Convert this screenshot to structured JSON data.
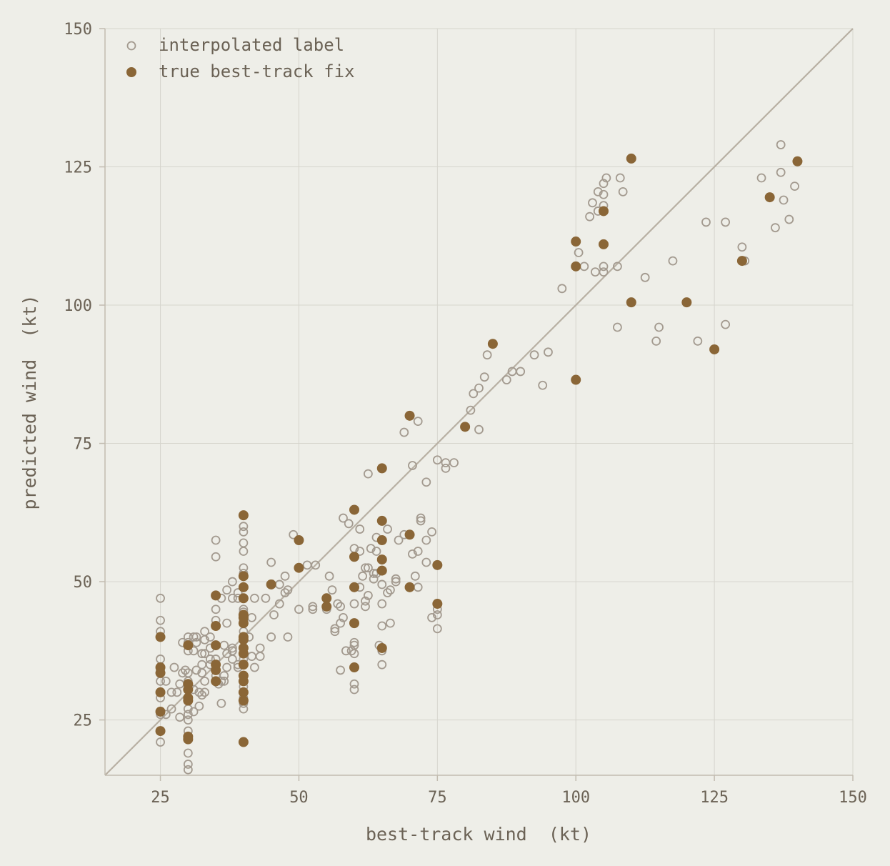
{
  "chart_data": {
    "type": "scatter",
    "xlabel": "best-track wind  (kt)",
    "ylabel": "predicted wind  (kt)",
    "xlim": [
      15,
      150
    ],
    "ylim": [
      15,
      150
    ],
    "xticks": [
      25,
      50,
      75,
      100,
      125,
      150
    ],
    "yticks": [
      25,
      50,
      75,
      100,
      125,
      150
    ],
    "grid": true,
    "legend_position": "top-left",
    "reference_line": "y = x",
    "colors": {
      "open": "#a39a8f",
      "filled": "#8a6637",
      "diagonal": "#b8b0a3"
    },
    "series": [
      {
        "name": "interpolated label",
        "marker": "open",
        "points": [
          [
            25,
            47
          ],
          [
            25,
            43
          ],
          [
            25,
            41
          ],
          [
            25,
            36
          ],
          [
            25,
            34
          ],
          [
            25,
            32
          ],
          [
            25,
            29
          ],
          [
            25,
            26
          ],
          [
            25,
            21
          ],
          [
            26,
            32
          ],
          [
            26,
            26
          ],
          [
            27,
            30
          ],
          [
            27,
            27
          ],
          [
            27.5,
            34.5
          ],
          [
            28,
            30
          ],
          [
            28.5,
            31.5
          ],
          [
            28.5,
            25.5
          ],
          [
            29,
            33.5
          ],
          [
            29,
            39
          ],
          [
            29.5,
            34
          ],
          [
            30,
            40
          ],
          [
            30,
            39
          ],
          [
            30,
            37.5
          ],
          [
            30,
            33.5
          ],
          [
            30,
            32
          ],
          [
            30,
            27
          ],
          [
            30,
            26
          ],
          [
            30,
            25
          ],
          [
            30,
            23
          ],
          [
            30,
            21.5
          ],
          [
            30,
            19
          ],
          [
            30,
            17
          ],
          [
            30,
            16
          ],
          [
            31,
            40
          ],
          [
            31,
            37.5
          ],
          [
            31,
            26.5
          ],
          [
            31,
            30.5
          ],
          [
            31.5,
            40
          ],
          [
            31.5,
            39
          ],
          [
            31.5,
            34
          ],
          [
            32,
            30
          ],
          [
            32,
            27.5
          ],
          [
            32.5,
            37
          ],
          [
            32.5,
            35
          ],
          [
            32.5,
            33.5
          ],
          [
            32.5,
            29.5
          ],
          [
            33,
            41
          ],
          [
            33,
            39.5
          ],
          [
            33,
            37
          ],
          [
            33,
            32
          ],
          [
            33,
            30
          ],
          [
            34,
            40
          ],
          [
            34,
            38
          ],
          [
            34,
            36
          ],
          [
            34,
            35
          ],
          [
            35,
            57.5
          ],
          [
            35,
            54.5
          ],
          [
            35,
            45
          ],
          [
            35,
            43
          ],
          [
            35,
            36
          ],
          [
            35,
            34
          ],
          [
            35,
            33
          ],
          [
            35.5,
            31.5
          ],
          [
            36,
            47
          ],
          [
            36,
            32
          ],
          [
            36,
            28
          ],
          [
            36.5,
            38.5
          ],
          [
            36.5,
            33
          ],
          [
            36.5,
            32
          ],
          [
            37,
            48.5
          ],
          [
            37,
            42.5
          ],
          [
            37,
            37
          ],
          [
            37,
            34.5
          ],
          [
            38,
            47
          ],
          [
            38,
            50
          ],
          [
            38,
            38
          ],
          [
            38,
            37.5
          ],
          [
            38,
            36
          ],
          [
            39,
            48
          ],
          [
            39,
            47
          ],
          [
            39,
            35
          ],
          [
            39,
            34.5
          ],
          [
            40,
            60
          ],
          [
            40,
            59
          ],
          [
            40,
            57
          ],
          [
            40,
            55.5
          ],
          [
            40,
            52.5
          ],
          [
            40,
            51.5
          ],
          [
            40,
            45
          ],
          [
            40,
            44.5
          ],
          [
            40,
            43
          ],
          [
            40,
            41
          ],
          [
            40,
            38
          ],
          [
            40,
            37
          ],
          [
            40,
            36
          ],
          [
            40,
            31
          ],
          [
            40,
            29
          ],
          [
            40,
            28
          ],
          [
            40,
            27
          ],
          [
            41,
            40
          ],
          [
            41.5,
            43.5
          ],
          [
            41.5,
            36.5
          ],
          [
            42,
            47
          ],
          [
            42,
            34.5
          ],
          [
            43,
            38
          ],
          [
            43,
            36.5
          ],
          [
            44,
            47
          ],
          [
            45,
            53.5
          ],
          [
            45,
            40
          ],
          [
            45.5,
            44
          ],
          [
            46.5,
            49.5
          ],
          [
            46.5,
            46
          ],
          [
            47.5,
            51
          ],
          [
            47.5,
            48
          ],
          [
            48,
            48.5
          ],
          [
            48,
            40
          ],
          [
            49,
            58.5
          ],
          [
            50,
            45
          ],
          [
            51.5,
            53
          ],
          [
            52.5,
            45
          ],
          [
            52.5,
            45.5
          ],
          [
            53,
            53
          ],
          [
            55,
            45
          ],
          [
            55.5,
            51
          ],
          [
            56,
            48.5
          ],
          [
            56.5,
            41.5
          ],
          [
            56.5,
            41
          ],
          [
            57,
            46
          ],
          [
            57.5,
            45.5
          ],
          [
            57.5,
            42.5
          ],
          [
            57.5,
            34
          ],
          [
            58,
            61.5
          ],
          [
            58,
            43.5
          ],
          [
            58.5,
            37.5
          ],
          [
            59,
            60.5
          ],
          [
            59.5,
            37.5
          ],
          [
            60,
            56
          ],
          [
            60,
            46
          ],
          [
            60,
            39
          ],
          [
            60,
            38.5
          ],
          [
            60,
            37
          ],
          [
            60,
            31.5
          ],
          [
            60,
            30.5
          ],
          [
            61,
            59.5
          ],
          [
            61,
            55.5
          ],
          [
            61,
            49
          ],
          [
            61.5,
            51
          ],
          [
            62,
            52.5
          ],
          [
            62,
            46.5
          ],
          [
            62,
            45.5
          ],
          [
            62.5,
            69.5
          ],
          [
            62.5,
            52.5
          ],
          [
            62.5,
            47.5
          ],
          [
            63,
            56
          ],
          [
            63.5,
            51.5
          ],
          [
            63.5,
            50.5
          ],
          [
            64,
            58
          ],
          [
            64,
            55.5
          ],
          [
            64,
            51.5
          ],
          [
            64.5,
            38.5
          ],
          [
            65,
            49.5
          ],
          [
            65,
            46
          ],
          [
            65,
            42
          ],
          [
            65,
            38
          ],
          [
            65,
            37.5
          ],
          [
            65,
            35
          ],
          [
            66,
            59.5
          ],
          [
            66,
            48
          ],
          [
            66.5,
            48.5
          ],
          [
            66.5,
            42.5
          ],
          [
            67.5,
            50.5
          ],
          [
            67.5,
            50
          ],
          [
            68,
            57.5
          ],
          [
            69,
            58.5
          ],
          [
            69,
            77
          ],
          [
            70,
            58.5
          ],
          [
            70.5,
            71
          ],
          [
            70.5,
            55
          ],
          [
            71,
            51
          ],
          [
            71.5,
            79
          ],
          [
            71.5,
            55.5
          ],
          [
            71.5,
            49
          ],
          [
            72,
            61.5
          ],
          [
            72,
            61
          ],
          [
            73,
            68
          ],
          [
            73,
            57.5
          ],
          [
            73,
            53.5
          ],
          [
            74,
            59
          ],
          [
            74,
            43.5
          ],
          [
            75,
            72
          ],
          [
            75,
            45
          ],
          [
            75,
            44
          ],
          [
            75,
            41.5
          ],
          [
            76.5,
            71.5
          ],
          [
            76.5,
            70.5
          ],
          [
            78,
            71.5
          ],
          [
            81,
            81
          ],
          [
            81.5,
            84
          ],
          [
            82.5,
            85
          ],
          [
            82.5,
            77.5
          ],
          [
            83.5,
            87
          ],
          [
            84,
            91
          ],
          [
            87.5,
            86.5
          ],
          [
            88.5,
            88
          ],
          [
            90,
            88
          ],
          [
            92.5,
            91
          ],
          [
            94,
            85.5
          ],
          [
            95,
            91.5
          ],
          [
            97.5,
            103
          ],
          [
            100.5,
            109.5
          ],
          [
            101.5,
            107
          ],
          [
            102.5,
            116
          ],
          [
            103,
            118.5
          ],
          [
            103.5,
            106
          ],
          [
            104,
            120.5
          ],
          [
            104,
            117
          ],
          [
            105,
            122
          ],
          [
            105,
            120
          ],
          [
            105,
            118
          ],
          [
            105,
            107
          ],
          [
            105,
            106
          ],
          [
            105.5,
            123
          ],
          [
            107.5,
            107
          ],
          [
            107.5,
            96
          ],
          [
            108,
            123
          ],
          [
            108.5,
            120.5
          ],
          [
            112.5,
            105
          ],
          [
            114.5,
            93.5
          ],
          [
            115,
            96
          ],
          [
            117.5,
            108
          ],
          [
            122,
            93.5
          ],
          [
            123.5,
            115
          ],
          [
            127,
            115
          ],
          [
            127,
            96.5
          ],
          [
            130,
            110.5
          ],
          [
            130.5,
            108
          ],
          [
            133.5,
            123
          ],
          [
            136,
            114
          ],
          [
            137,
            129
          ],
          [
            137,
            124
          ],
          [
            137.5,
            119
          ],
          [
            138.5,
            115.5
          ],
          [
            139.5,
            121.5
          ]
        ]
      },
      {
        "name": "true best-track fix",
        "marker": "filled",
        "points": [
          [
            25,
            40
          ],
          [
            25,
            34.5
          ],
          [
            25,
            33.5
          ],
          [
            25,
            30
          ],
          [
            25,
            26.5
          ],
          [
            25,
            23
          ],
          [
            30,
            38.5
          ],
          [
            30,
            31.5
          ],
          [
            30,
            30.5
          ],
          [
            30,
            29
          ],
          [
            30,
            28.5
          ],
          [
            30,
            22
          ],
          [
            30,
            21.5
          ],
          [
            35,
            47.5
          ],
          [
            35,
            42
          ],
          [
            35,
            38.5
          ],
          [
            35,
            35
          ],
          [
            35,
            34
          ],
          [
            35,
            32
          ],
          [
            40,
            62
          ],
          [
            40,
            51
          ],
          [
            40,
            49
          ],
          [
            40,
            47
          ],
          [
            40,
            44
          ],
          [
            40,
            43.5
          ],
          [
            40,
            42.5
          ],
          [
            40,
            40
          ],
          [
            40,
            39.5
          ],
          [
            40,
            38
          ],
          [
            40,
            37
          ],
          [
            40,
            35
          ],
          [
            40,
            33
          ],
          [
            40,
            32
          ],
          [
            40,
            30
          ],
          [
            40,
            28.5
          ],
          [
            40,
            21
          ],
          [
            45,
            49.5
          ],
          [
            50,
            57.5
          ],
          [
            50,
            52.5
          ],
          [
            55,
            47
          ],
          [
            55,
            45.5
          ],
          [
            60,
            63
          ],
          [
            60,
            54.5
          ],
          [
            60,
            49
          ],
          [
            60,
            42.5
          ],
          [
            60,
            34.5
          ],
          [
            65,
            70.5
          ],
          [
            65,
            61
          ],
          [
            65,
            57.5
          ],
          [
            65,
            54
          ],
          [
            65,
            52
          ],
          [
            65,
            38
          ],
          [
            70,
            80
          ],
          [
            70,
            58.5
          ],
          [
            70,
            49
          ],
          [
            75,
            53
          ],
          [
            75,
            46
          ],
          [
            80,
            78
          ],
          [
            85,
            93
          ],
          [
            100,
            111.5
          ],
          [
            100,
            107
          ],
          [
            100,
            86.5
          ],
          [
            105,
            117
          ],
          [
            105,
            111
          ],
          [
            110,
            126.5
          ],
          [
            110,
            100.5
          ],
          [
            120,
            100.5
          ],
          [
            125,
            92
          ],
          [
            130,
            108
          ],
          [
            135,
            119.5
          ],
          [
            140,
            126
          ]
        ]
      }
    ]
  }
}
